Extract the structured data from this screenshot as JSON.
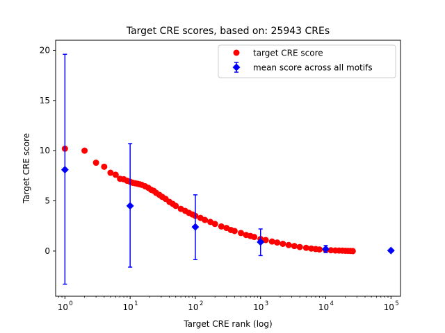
{
  "chart_data": {
    "type": "scatter",
    "title": "Target CRE scores, based on: 25943 CREs",
    "xlabel": "Target CRE rank (log)",
    "ylabel": "Target CRE score",
    "xscale": "log",
    "xlim": [
      0.72,
      140000
    ],
    "ylim": [
      -4.5,
      21
    ],
    "x_ticks": [
      {
        "base": "10",
        "exp": "0",
        "value": 1
      },
      {
        "base": "10",
        "exp": "1",
        "value": 10
      },
      {
        "base": "10",
        "exp": "2",
        "value": 100
      },
      {
        "base": "10",
        "exp": "3",
        "value": 1000
      },
      {
        "base": "10",
        "exp": "4",
        "value": 10000
      },
      {
        "base": "10",
        "exp": "5",
        "value": 100000
      }
    ],
    "y_ticks": [
      {
        "label": "0",
        "value": 0
      },
      {
        "label": "5",
        "value": 5
      },
      {
        "label": "10",
        "value": 10
      },
      {
        "label": "15",
        "value": 15
      },
      {
        "label": "20",
        "value": 20
      }
    ],
    "grid": false,
    "legend_position": "top-right",
    "series": [
      {
        "name": "target CRE score",
        "marker": "circle",
        "color": "#ff0000",
        "x": [
          1,
          2,
          3,
          4,
          5,
          6,
          7,
          8,
          9,
          10,
          11,
          12,
          13,
          14,
          15,
          17,
          19,
          21,
          23,
          25,
          28,
          31,
          35,
          40,
          45,
          50,
          60,
          70,
          80,
          90,
          100,
          120,
          140,
          170,
          200,
          250,
          300,
          350,
          400,
          500,
          600,
          700,
          800,
          1000,
          1200,
          1500,
          1800,
          2200,
          2700,
          3300,
          4000,
          5000,
          6000,
          7000,
          8000,
          10000,
          12000,
          14000,
          16000,
          18000,
          20000,
          22000,
          24000,
          25943
        ],
        "y": [
          10.2,
          10.0,
          8.8,
          8.4,
          7.8,
          7.6,
          7.2,
          7.15,
          7.0,
          6.9,
          6.8,
          6.75,
          6.7,
          6.65,
          6.6,
          6.45,
          6.3,
          6.1,
          6.0,
          5.8,
          5.6,
          5.4,
          5.2,
          4.9,
          4.7,
          4.5,
          4.2,
          4.0,
          3.8,
          3.65,
          3.5,
          3.3,
          3.1,
          2.9,
          2.7,
          2.45,
          2.3,
          2.1,
          2.0,
          1.8,
          1.6,
          1.5,
          1.4,
          1.2,
          1.1,
          0.95,
          0.85,
          0.72,
          0.6,
          0.5,
          0.4,
          0.32,
          0.25,
          0.2,
          0.16,
          0.12,
          0.08,
          0.06,
          0.05,
          0.04,
          0.03,
          0.02,
          0.01,
          0.0
        ]
      },
      {
        "name": "mean score across all motifs",
        "marker": "diamond",
        "color": "#0000ff",
        "x": [
          1,
          10,
          100,
          1000,
          10000,
          100000
        ],
        "y": [
          8.1,
          4.5,
          2.4,
          0.9,
          0.2,
          0.05
        ],
        "err_low": [
          -3.3,
          -1.6,
          -0.85,
          -0.45,
          -0.15,
          0.05
        ],
        "err_high": [
          19.6,
          10.7,
          5.6,
          2.2,
          0.55,
          0.05
        ]
      }
    ]
  }
}
